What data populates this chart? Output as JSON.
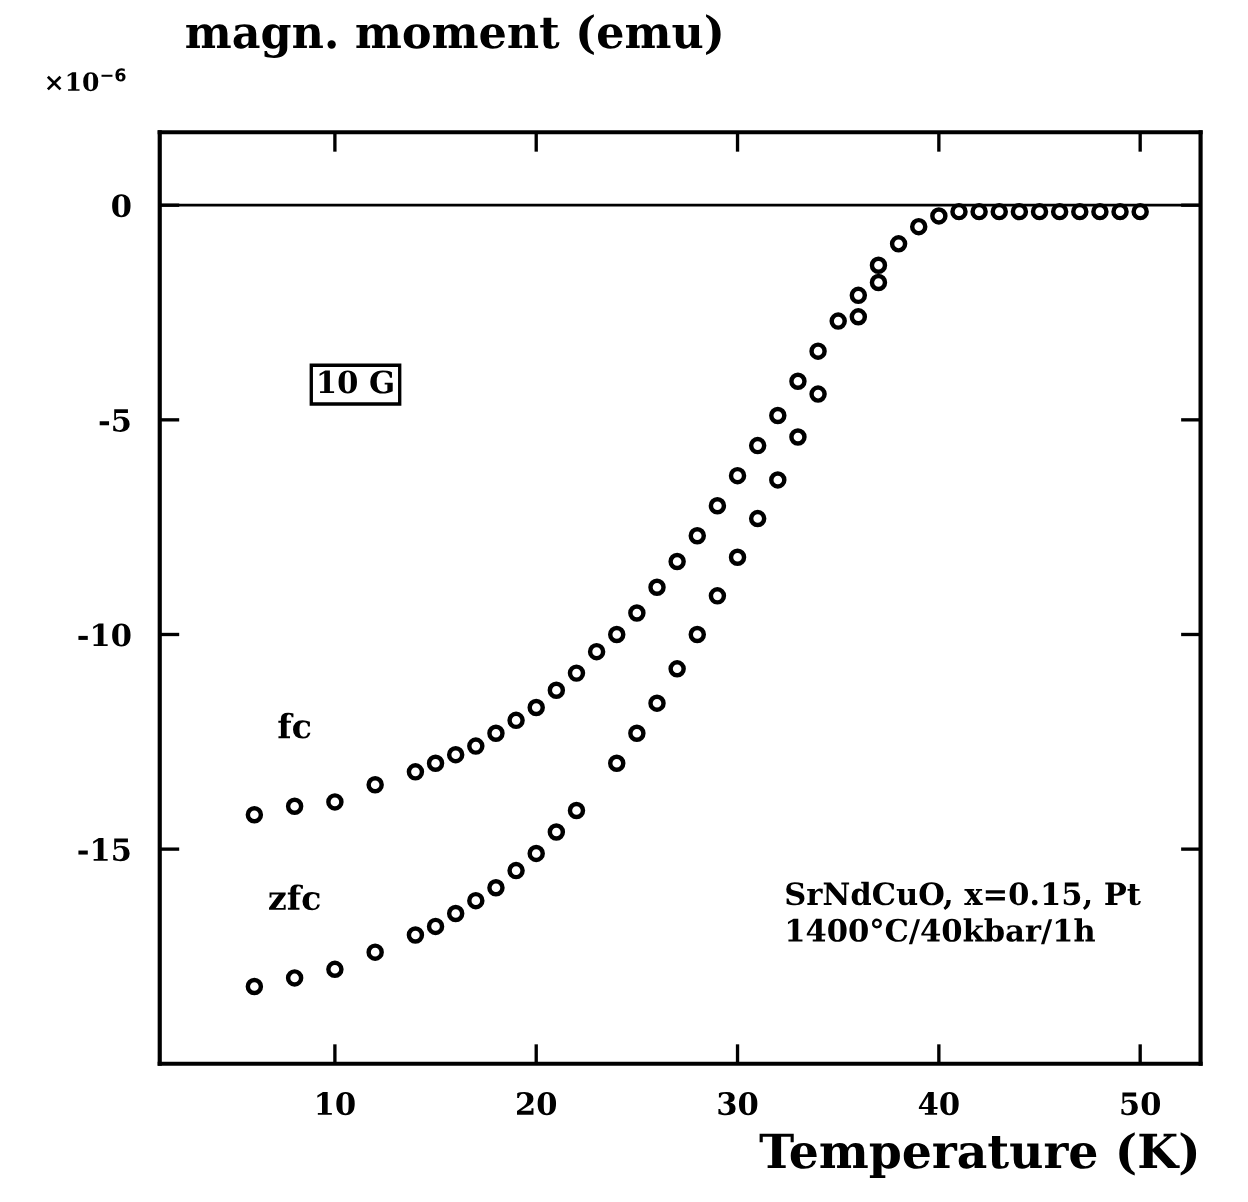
{
  "chart_data": {
    "type": "scatter",
    "ylabel": "magn. moment (emu)",
    "xlabel": "Temperature (K)",
    "annotations": [
      "×10$^{−6}$",
      "10 G",
      "SrNdCuO, x=0.15, Pt\n1400°C/40kbar/1h"
    ],
    "xlim": [
      1.3,
      53
    ],
    "ylim": [
      -20,
      1.7
    ],
    "xticks": [
      10,
      20,
      30,
      40,
      50
    ],
    "yticks": [
      0,
      -5,
      -10,
      -15
    ],
    "marker": "circle",
    "grid": false,
    "legend": false,
    "ref_lines": [
      {
        "axis": "y",
        "value": 0,
        "color": "#000000"
      }
    ],
    "series": [
      {
        "name": "fc",
        "color": "#000000",
        "x": [
          6,
          8,
          10,
          12,
          14,
          15,
          16,
          17,
          18,
          19,
          20,
          21,
          22,
          23,
          24,
          25,
          26,
          27,
          28,
          29,
          30,
          31,
          32,
          33,
          34,
          35,
          36,
          37,
          38,
          39,
          40,
          41,
          42,
          43,
          44,
          45,
          46,
          47,
          48,
          49,
          50
        ],
        "values": [
          -14.2,
          -14.0,
          -13.9,
          -13.5,
          -13.2,
          -13.0,
          -12.8,
          -12.6,
          -12.3,
          -12.0,
          -11.7,
          -11.3,
          -10.9,
          -10.4,
          -10.0,
          -9.5,
          -8.9,
          -8.3,
          -7.7,
          -7.0,
          -6.3,
          -5.6,
          -4.9,
          -4.1,
          -3.4,
          -2.7,
          -2.1,
          -1.4,
          -0.9,
          -0.5,
          -0.25,
          -0.15,
          -0.15,
          -0.15,
          -0.15,
          -0.15,
          -0.15,
          -0.15,
          -0.15,
          -0.15,
          -0.15
        ]
      },
      {
        "name": "zfc",
        "color": "#000000",
        "x": [
          6,
          8,
          10,
          12,
          14,
          15,
          16,
          17,
          18,
          19,
          20,
          21,
          22,
          24,
          25,
          26,
          27,
          28,
          29,
          30,
          31,
          32,
          33,
          34,
          36,
          37
        ],
        "values": [
          -18.2,
          -18.0,
          -17.8,
          -17.4,
          -17.0,
          -16.8,
          -16.5,
          -16.2,
          -15.9,
          -15.5,
          -15.1,
          -14.6,
          -14.1,
          -13.0,
          -12.3,
          -11.6,
          -10.8,
          -10.0,
          -9.1,
          -8.2,
          -7.3,
          -6.4,
          -5.4,
          -4.4,
          -2.6,
          -1.8
        ]
      }
    ]
  }
}
